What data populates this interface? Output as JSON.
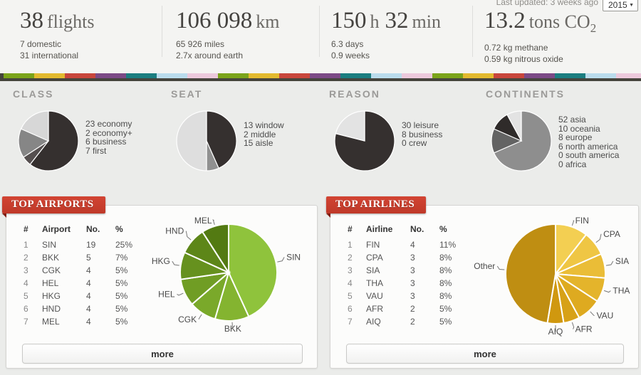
{
  "header": {
    "last_updated": "Last updated: 3 weeks ago",
    "year_selected": "2015",
    "stats": [
      {
        "name": "flights",
        "parts": [
          {
            "num": "38",
            "unit": "flights"
          }
        ],
        "subs": [
          "7 domestic",
          "31 international"
        ]
      },
      {
        "name": "distance",
        "parts": [
          {
            "num": "106 098",
            "unit": "km"
          }
        ],
        "subs": [
          "65 926 miles",
          "2.7x around earth"
        ]
      },
      {
        "name": "duration",
        "parts": [
          {
            "num": "150",
            "unit": "h"
          },
          {
            "num": "32",
            "unit": "min"
          }
        ],
        "subs": [
          "6.3 days",
          "0.9 weeks"
        ]
      },
      {
        "name": "co2",
        "parts": [
          {
            "num": "13.2",
            "unit": "tons CO",
            "unit_sub": "2"
          }
        ],
        "subs": [
          "0.72 kg methane",
          "0.59 kg nitrous oxide"
        ]
      }
    ]
  },
  "stripe": {
    "colors": [
      "#7ba41a",
      "#e3ba2f",
      "#c8463c",
      "#7c4a86",
      "#1b7e80",
      "#badcec",
      "#ecc9dc"
    ],
    "underline_color": "#45443c"
  },
  "chart_data": [
    {
      "type": "pie",
      "title": "CLASS",
      "labels": [
        "economy",
        "economy+",
        "business",
        "first"
      ],
      "values": [
        23,
        2,
        6,
        7
      ],
      "colors": [
        "#35302f",
        "#554f4f",
        "#868686",
        "#d7d7d7"
      ],
      "legend_position": "right",
      "outside_labels": false
    },
    {
      "type": "pie",
      "title": "SEAT",
      "labels": [
        "window",
        "middle",
        "aisle"
      ],
      "values": [
        13,
        2,
        15
      ],
      "colors": [
        "#35302f",
        "#909090",
        "#dedede"
      ],
      "legend_position": "right",
      "outside_labels": false
    },
    {
      "type": "pie",
      "title": "REASON",
      "labels": [
        "leisure",
        "business",
        "crew"
      ],
      "values": [
        30,
        8,
        0
      ],
      "colors": [
        "#35302f",
        "#e3e3e3",
        "#aaaaaa"
      ],
      "legend_position": "right",
      "outside_labels": false
    },
    {
      "type": "pie",
      "title": "CONTINENTS",
      "labels": [
        "asia",
        "oceania",
        "europe",
        "north america",
        "south america",
        "africa"
      ],
      "values": [
        52,
        10,
        8,
        6,
        0,
        0
      ],
      "colors": [
        "#8e8e8e",
        "#636363",
        "#2f2b2a",
        "#e3e3e3",
        "#cccccc",
        "#bbbbbb"
      ],
      "legend_position": "right",
      "outside_labels": false
    },
    {
      "type": "pie",
      "title": "TOP AIRPORTS",
      "labels": [
        "SIN",
        "BKK",
        "CGK",
        "HEL",
        "HKG",
        "HND",
        "MEL"
      ],
      "values": [
        19,
        5,
        4,
        4,
        4,
        4,
        4
      ],
      "colors": [
        "#8fc33c",
        "#84b430",
        "#7aa92a",
        "#709d24",
        "#66911e",
        "#5d8618",
        "#537a12"
      ],
      "legend_position": "none",
      "outside_labels": true
    },
    {
      "type": "pie",
      "title": "TOP AIRLINES",
      "labels": [
        "FIN",
        "CPA",
        "SIA",
        "THA",
        "VAU",
        "AFR",
        "AIQ",
        "Other"
      ],
      "values": [
        4,
        3,
        3,
        3,
        3,
        2,
        2,
        18
      ],
      "colors": [
        "#f3cf52",
        "#efc644",
        "#eabd37",
        "#e4b42b",
        "#deaa20",
        "#d7a117",
        "#d0980f",
        "#bf8e12"
      ],
      "legend_position": "none",
      "outside_labels": true
    }
  ],
  "cards": [
    {
      "ribbon": "TOP AIRPORTS",
      "columns": [
        "#",
        "Airport",
        "No.",
        "%"
      ],
      "rows": [
        [
          "1",
          "SIN",
          "19",
          "25%"
        ],
        [
          "2",
          "BKK",
          "5",
          "7%"
        ],
        [
          "3",
          "CGK",
          "4",
          "5%"
        ],
        [
          "4",
          "HEL",
          "4",
          "5%"
        ],
        [
          "5",
          "HKG",
          "4",
          "5%"
        ],
        [
          "6",
          "HND",
          "4",
          "5%"
        ],
        [
          "7",
          "MEL",
          "4",
          "5%"
        ]
      ],
      "more_label": "more"
    },
    {
      "ribbon": "TOP AIRLINES",
      "columns": [
        "#",
        "Airline",
        "No.",
        "%"
      ],
      "rows": [
        [
          "1",
          "FIN",
          "4",
          "11%"
        ],
        [
          "2",
          "CPA",
          "3",
          "8%"
        ],
        [
          "3",
          "SIA",
          "3",
          "8%"
        ],
        [
          "4",
          "THA",
          "3",
          "8%"
        ],
        [
          "5",
          "VAU",
          "3",
          "8%"
        ],
        [
          "6",
          "AFR",
          "2",
          "5%"
        ],
        [
          "7",
          "AIQ",
          "2",
          "5%"
        ]
      ],
      "more_label": "more"
    }
  ]
}
